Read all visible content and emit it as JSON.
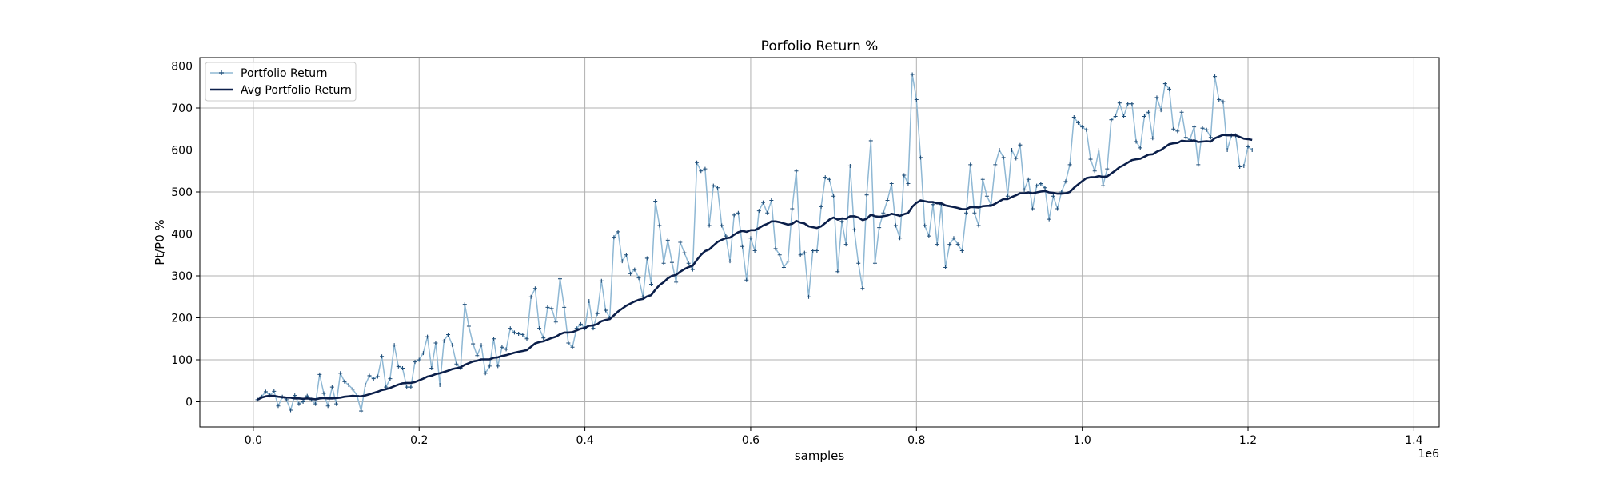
{
  "chart_data": {
    "type": "line",
    "title": "Porfolio Return %",
    "xlabel": "samples",
    "ylabel": "Pt/P0 %",
    "x_offset_label": "1e6",
    "xlim": [
      -0.0645,
      1.4305
    ],
    "ylim": [
      -60,
      820
    ],
    "x_ticks": [
      0.0,
      0.2,
      0.4,
      0.6,
      0.8,
      1.0,
      1.2,
      1.4
    ],
    "x_tick_labels": [
      "0.0",
      "0.2",
      "0.4",
      "0.6",
      "0.8",
      "1.0",
      "1.2",
      "1.4"
    ],
    "y_ticks": [
      0,
      100,
      200,
      300,
      400,
      500,
      600,
      700,
      800
    ],
    "y_tick_labels": [
      "0",
      "100",
      "200",
      "300",
      "400",
      "500",
      "600",
      "700",
      "800"
    ],
    "grid": true,
    "legend_position": "upper-left",
    "series": [
      {
        "name": "Portfolio Return",
        "color": "#8fb8d4",
        "marker": "+",
        "x_start": 0.005,
        "x_step": 0.005,
        "values": [
          5,
          12,
          24,
          15,
          25,
          -10,
          12,
          5,
          -20,
          15,
          -5,
          0,
          14,
          5,
          -5,
          65,
          20,
          -10,
          35,
          -5,
          68,
          48,
          40,
          30,
          15,
          -22,
          40,
          62,
          55,
          60,
          108,
          35,
          55,
          135,
          84,
          80,
          35,
          35,
          95,
          100,
          116,
          155,
          80,
          140,
          40,
          145,
          160,
          135,
          90,
          80,
          232,
          180,
          138,
          110,
          135,
          68,
          85,
          150,
          85,
          130,
          125,
          175,
          165,
          162,
          160,
          150,
          250,
          270,
          175,
          152,
          225,
          222,
          190,
          293,
          225,
          140,
          130,
          175,
          185,
          175,
          240,
          175,
          210,
          288,
          218,
          200,
          392,
          405,
          335,
          350,
          305,
          315,
          295,
          250,
          342,
          280,
          478,
          420,
          330,
          385,
          332,
          285,
          380,
          355,
          330,
          315,
          570,
          550,
          555,
          420,
          515,
          510,
          420,
          395,
          335,
          445,
          450,
          370,
          290,
          390,
          360,
          455,
          475,
          450,
          480,
          365,
          350,
          320,
          335,
          460,
          550,
          350,
          355,
          250,
          360,
          360,
          465,
          535,
          530,
          490,
          310,
          430,
          375,
          562,
          410,
          330,
          270,
          493,
          622,
          330,
          415,
          450,
          480,
          520,
          420,
          390,
          540,
          520,
          780,
          720,
          582,
          420,
          395,
          470,
          375,
          470,
          320,
          375,
          390,
          375,
          360,
          450,
          565,
          450,
          420,
          530,
          490,
          470,
          565,
          600,
          582,
          490,
          600,
          580,
          612,
          505,
          530,
          460,
          515,
          520,
          510,
          435,
          490,
          460,
          500,
          525,
          565,
          678,
          665,
          655,
          648,
          578,
          550,
          600,
          515,
          555,
          672,
          680,
          712,
          680,
          710,
          710,
          620,
          605,
          680,
          690,
          628,
          725,
          695,
          758,
          745,
          650,
          645,
          690,
          630,
          625,
          655,
          565,
          652,
          648,
          630,
          775,
          720,
          715,
          600,
          635,
          635,
          560,
          562,
          608,
          600
        ]
      },
      {
        "name": "Avg Portfolio Return",
        "color": "#0b1f4a",
        "x_start": 0.005,
        "x_step": 0.005,
        "values": [
          5,
          10,
          13,
          14,
          14,
          12,
          11,
          10,
          10,
          8,
          8,
          7,
          8,
          7,
          6,
          8,
          9,
          8,
          8,
          9,
          10,
          12,
          13,
          14,
          13,
          13,
          15,
          18,
          21,
          24,
          28,
          30,
          33,
          37,
          41,
          44,
          45,
          45,
          47,
          51,
          55,
          60,
          62,
          66,
          68,
          71,
          74,
          78,
          80,
          82,
          88,
          92,
          96,
          98,
          101,
          101,
          101,
          105,
          106,
          109,
          111,
          114,
          117,
          119,
          121,
          123,
          131,
          139,
          142,
          144,
          148,
          152,
          155,
          161,
          165,
          165,
          166,
          170,
          174,
          176,
          181,
          182,
          185,
          192,
          195,
          197,
          206,
          215,
          222,
          229,
          234,
          239,
          243,
          245,
          251,
          254,
          267,
          278,
          285,
          294,
          300,
          302,
          310,
          316,
          321,
          324,
          338,
          350,
          359,
          363,
          372,
          381,
          386,
          390,
          391,
          398,
          404,
          407,
          405,
          409,
          409,
          414,
          420,
          424,
          430,
          430,
          428,
          425,
          422,
          424,
          431,
          427,
          425,
          418,
          416,
          414,
          418,
          426,
          434,
          439,
          434,
          437,
          436,
          442,
          442,
          439,
          433,
          436,
          446,
          442,
          441,
          442,
          444,
          448,
          446,
          443,
          447,
          450,
          465,
          474,
          480,
          478,
          476,
          476,
          473,
          473,
          468,
          466,
          464,
          462,
          459,
          459,
          464,
          464,
          463,
          466,
          467,
          467,
          472,
          478,
          483,
          483,
          488,
          492,
          497,
          497,
          499,
          497,
          499,
          501,
          502,
          499,
          498,
          496,
          496,
          497,
          500,
          510,
          518,
          526,
          533,
          535,
          535,
          538,
          536,
          537,
          544,
          551,
          559,
          564,
          570,
          576,
          578,
          579,
          584,
          589,
          590,
          596,
          600,
          607,
          614,
          616,
          617,
          622,
          621,
          621,
          623,
          619,
          620,
          621,
          620,
          628,
          632,
          636,
          635,
          635,
          635,
          631,
          627,
          626,
          624
        ]
      }
    ]
  }
}
